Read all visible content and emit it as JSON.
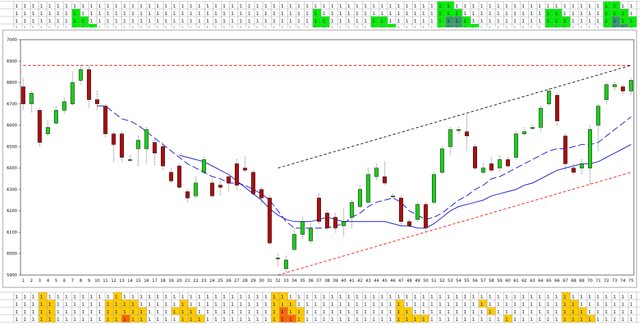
{
  "chart_data": {
    "type": "candlestick",
    "title": "",
    "xlabel": "",
    "ylabel": "",
    "x": [
      1,
      2,
      3,
      4,
      5,
      6,
      7,
      8,
      9,
      10,
      11,
      12,
      13,
      14,
      15,
      16,
      17,
      18,
      19,
      20,
      21,
      22,
      23,
      24,
      25,
      26,
      27,
      28,
      29,
      30,
      31,
      32,
      33,
      34,
      35,
      36,
      37,
      38,
      39,
      40,
      41,
      42,
      43,
      44,
      45,
      46,
      47,
      48,
      49,
      50,
      51,
      52,
      53,
      54,
      55,
      56,
      57,
      58,
      59,
      60,
      61,
      62,
      63,
      64,
      65,
      66,
      67,
      68,
      69,
      70,
      71,
      72,
      73,
      74,
      75
    ],
    "xlim": [
      1,
      75
    ],
    "ylim": [
      5900,
      7000
    ],
    "yticks": [
      5900,
      6000,
      6100,
      6200,
      6300,
      6400,
      6500,
      6600,
      6700,
      6800,
      6900,
      7000
    ],
    "grid": false,
    "candles": [
      [
        6780,
        6700,
        6820,
        6670
      ],
      [
        6700,
        6750,
        6760,
        6660
      ],
      [
        6670,
        6520,
        6680,
        6500
      ],
      [
        6560,
        6590,
        6620,
        6550
      ],
      [
        6610,
        6670,
        6690,
        6600
      ],
      [
        6670,
        6710,
        6730,
        6650
      ],
      [
        6700,
        6800,
        6850,
        6690
      ],
      [
        6810,
        6860,
        6880,
        6790
      ],
      [
        6860,
        6720,
        6880,
        6680
      ],
      [
        6720,
        6700,
        6760,
        6670
      ],
      [
        6690,
        6560,
        6700,
        6540
      ],
      [
        6560,
        6510,
        6570,
        6430
      ],
      [
        6560,
        6450,
        6570,
        6430
      ],
      [
        6440,
        6440,
        6460,
        6430
      ],
      [
        6490,
        6530,
        6550,
        6410
      ],
      [
        6490,
        6580,
        6590,
        6420
      ],
      [
        6520,
        6470,
        6530,
        6410
      ],
      [
        6500,
        6410,
        6520,
        6390
      ],
      [
        6380,
        6340,
        6400,
        6330
      ],
      [
        6410,
        6310,
        6420,
        6300
      ],
      [
        6290,
        6260,
        6300,
        6240
      ],
      [
        6270,
        6330,
        6360,
        6260
      ],
      [
        6380,
        6440,
        6450,
        6370
      ],
      [
        6330,
        6270,
        6350,
        6260
      ],
      [
        6320,
        6310,
        6340,
        6270
      ],
      [
        6360,
        6330,
        6360,
        6290
      ],
      [
        6420,
        6320,
        6440,
        6300
      ],
      [
        6400,
        6390,
        6450,
        6380
      ],
      [
        6380,
        6280,
        6390,
        6270
      ],
      [
        6300,
        6260,
        6310,
        6230
      ],
      [
        6260,
        6050,
        6270,
        6040
      ],
      [
        5980,
        5980,
        6000,
        5940
      ],
      [
        5930,
        5970,
        5990,
        5910
      ],
      [
        6020,
        6090,
        6120,
        6010
      ],
      [
        6090,
        6150,
        6170,
        6070
      ],
      [
        6060,
        6120,
        6140,
        6050
      ],
      [
        6260,
        6150,
        6280,
        6140
      ],
      [
        6190,
        6120,
        6200,
        6110
      ],
      [
        6170,
        6120,
        6190,
        6100
      ],
      [
        6130,
        6150,
        6210,
        6080
      ],
      [
        6170,
        6240,
        6250,
        6120
      ],
      [
        6220,
        6300,
        6320,
        6210
      ],
      [
        6240,
        6370,
        6400,
        6230
      ],
      [
        6360,
        6400,
        6420,
        6340
      ],
      [
        6360,
        6330,
        6430,
        6320
      ],
      [
        6270,
        6270,
        6280,
        6260
      ],
      [
        6260,
        6150,
        6270,
        6130
      ],
      [
        6150,
        6130,
        6160,
        6120
      ],
      [
        6160,
        6230,
        6240,
        6150
      ],
      [
        6230,
        6120,
        6240,
        6100
      ],
      [
        6240,
        6370,
        6380,
        6230
      ],
      [
        6380,
        6490,
        6500,
        6370
      ],
      [
        6500,
        6580,
        6590,
        6460
      ],
      [
        6580,
        6580,
        6590,
        6560
      ],
      [
        6570,
        6550,
        6650,
        6480
      ],
      [
        6500,
        6400,
        6510,
        6390
      ],
      [
        6380,
        6400,
        6420,
        6370
      ],
      [
        6420,
        6390,
        6450,
        6380
      ],
      [
        6400,
        6440,
        6460,
        6380
      ],
      [
        6440,
        6410,
        6450,
        6400
      ],
      [
        6450,
        6560,
        6570,
        6440
      ],
      [
        6560,
        6570,
        6590,
        6550
      ],
      [
        6590,
        6590,
        6600,
        6580
      ],
      [
        6590,
        6680,
        6690,
        6570
      ],
      [
        6700,
        6760,
        6770,
        6690
      ],
      [
        6740,
        6620,
        6750,
        6600
      ],
      [
        6550,
        6420,
        6560,
        6390
      ],
      [
        6400,
        6380,
        6420,
        6370
      ],
      [
        6400,
        6420,
        6440,
        6370
      ],
      [
        6400,
        6580,
        6600,
        6320
      ],
      [
        6600,
        6690,
        6700,
        6480
      ],
      [
        6720,
        6790,
        6800,
        6700
      ],
      [
        6780,
        6790,
        6800,
        6760
      ],
      [
        6780,
        6760,
        6790,
        6740
      ],
      [
        6760,
        6810,
        6820,
        6740
      ]
    ],
    "ma_short": [
      null,
      null,
      null,
      null,
      null,
      null,
      null,
      null,
      null,
      6690,
      6690,
      6660,
      6630,
      6620,
      6600,
      6570,
      6540,
      6510,
      6480,
      6450,
      6420,
      6400,
      6380,
      6360,
      6350,
      6330,
      6330,
      6320,
      6300,
      6280,
      6250,
      6200,
      6150,
      6120,
      6120,
      6120,
      6120,
      6120,
      6130,
      6140,
      6170,
      6190,
      6220,
      6240,
      6250,
      6260,
      6240,
      6200,
      6180,
      6160,
      6170,
      6190,
      6220,
      6250,
      6270,
      6300,
      6320,
      6350,
      6360,
      6380,
      6400,
      6420,
      6440,
      6460,
      6480,
      6490,
      6490,
      6500,
      6510,
      6510,
      6520,
      6550,
      6580,
      6610,
      6640
    ],
    "ma_long": [
      null,
      null,
      null,
      null,
      null,
      null,
      null,
      null,
      null,
      null,
      null,
      null,
      null,
      null,
      null,
      null,
      null,
      null,
      null,
      6460,
      6450,
      6440,
      6430,
      6410,
      6390,
      6370,
      6340,
      6310,
      6280,
      6250,
      6210,
      6180,
      6160,
      6150,
      6150,
      6150,
      6160,
      6170,
      6160,
      6150,
      6150,
      6150,
      6150,
      6150,
      6150,
      6140,
      6130,
      6130,
      6120,
      6120,
      6140,
      6170,
      6200,
      6220,
      6230,
      6240,
      6250,
      6270,
      6280,
      6290,
      6300,
      6320,
      6330,
      6350,
      6370,
      6390,
      6400,
      6410,
      6420,
      6420,
      6430,
      6450,
      6470,
      6490,
      6510
    ],
    "lines": [
      {
        "color": "#ff0000",
        "style": "dashed",
        "points": [
          [
            1,
            6880
          ],
          [
            75,
            6880
          ]
        ]
      },
      {
        "color": "#000000",
        "style": "dashed",
        "points": [
          [
            32,
            6400
          ],
          [
            75,
            6880
          ]
        ]
      },
      {
        "color": "#ff0000",
        "style": "dashed",
        "points": [
          [
            32,
            5900
          ],
          [
            75,
            6380
          ]
        ]
      }
    ],
    "colors": {
      "up": "#22cc22",
      "down": "#aa1111",
      "ma": "#0000cc"
    }
  },
  "top_grid": {
    "value": "1",
    "rows": 4,
    "cols": 75,
    "highlights": [
      {
        "col": 8,
        "rows": [
          1,
          2,
          3
        ],
        "color": "#00ee00"
      },
      {
        "col": 9,
        "rows": [
          2,
          3
        ],
        "color": "#00ee00"
      },
      {
        "col": 10,
        "rows": [
          3
        ],
        "color": "#00ee00"
      },
      {
        "col": 37,
        "rows": [
          1,
          2,
          3
        ],
        "color": "#00ee00"
      },
      {
        "col": 38,
        "rows": [
          2,
          3
        ],
        "color": "#00ee00"
      },
      {
        "col": 44,
        "rows": [
          2,
          3
        ],
        "color": "#00ee00"
      },
      {
        "col": 45,
        "rows": [
          2,
          3
        ],
        "color": "#00ee00"
      },
      {
        "col": 46,
        "rows": [
          3
        ],
        "color": "#00ee00"
      },
      {
        "col": 52,
        "rows": [
          0,
          1,
          2,
          3
        ],
        "color": "#00ee00"
      },
      {
        "col": 53,
        "rows": [
          0,
          1
        ],
        "color": "#00ee00"
      },
      {
        "col": 53,
        "rows": [
          2,
          3
        ],
        "color": "#339966"
      },
      {
        "col": 54,
        "rows": [
          1
        ],
        "color": "#00ee00"
      },
      {
        "col": 54,
        "rows": [
          2,
          3
        ],
        "color": "#339966"
      },
      {
        "col": 55,
        "rows": [
          2,
          3
        ],
        "color": "#00ee00"
      },
      {
        "col": 56,
        "rows": [
          3
        ],
        "color": "#00ee00"
      },
      {
        "col": 65,
        "rows": [
          1,
          2,
          3
        ],
        "color": "#00ee00"
      },
      {
        "col": 66,
        "rows": [
          1,
          2,
          3
        ],
        "color": "#00ee00"
      },
      {
        "col": 67,
        "rows": [
          2,
          3
        ],
        "color": "#00ee00"
      },
      {
        "col": 72,
        "rows": [
          0,
          1,
          2,
          3
        ],
        "color": "#00ee00"
      },
      {
        "col": 73,
        "rows": [
          0,
          1
        ],
        "color": "#00ee00"
      },
      {
        "col": 73,
        "rows": [
          2,
          3
        ],
        "color": "#339966"
      },
      {
        "col": 74,
        "rows": [
          1,
          2
        ],
        "color": "#00ee00"
      },
      {
        "col": 74,
        "rows": [
          3
        ],
        "color": "#339966"
      },
      {
        "col": 75,
        "rows": [
          2,
          3
        ],
        "color": "#00ee00"
      }
    ]
  },
  "bottom_grid": {
    "value": "1",
    "rows": 4,
    "cols": 75,
    "highlights": [
      {
        "col": 4,
        "rows": [
          0,
          1,
          2,
          3
        ],
        "color": "#ffcc00"
      },
      {
        "col": 5,
        "rows": [
          1,
          2,
          3
        ],
        "color": "#ffcc00"
      },
      {
        "col": 12,
        "rows": [
          1,
          2,
          3
        ],
        "color": "#ffcc00"
      },
      {
        "col": 13,
        "rows": [
          0,
          1,
          2,
          3
        ],
        "color": "#ffcc00"
      },
      {
        "col": 14,
        "rows": [
          1,
          2
        ],
        "color": "#ffcc00"
      },
      {
        "col": 14,
        "rows": [
          3
        ],
        "color": "#ff6600"
      },
      {
        "col": 15,
        "rows": [
          1,
          2,
          3
        ],
        "color": "#ffcc00"
      },
      {
        "col": 16,
        "rows": [
          2,
          3
        ],
        "color": "#ffcc00"
      },
      {
        "col": 20,
        "rows": [
          2
        ],
        "color": "#ffcc00"
      },
      {
        "col": 21,
        "rows": [
          1,
          2,
          3
        ],
        "color": "#ffcc00"
      },
      {
        "col": 22,
        "rows": [
          2,
          3
        ],
        "color": "#ffcc00"
      },
      {
        "col": 23,
        "rows": [
          3
        ],
        "color": "#ffcc00"
      },
      {
        "col": 32,
        "rows": [
          0,
          1,
          2,
          3
        ],
        "color": "#ffcc00"
      },
      {
        "col": 33,
        "rows": [
          0,
          1
        ],
        "color": "#ffcc00"
      },
      {
        "col": 33,
        "rows": [
          2,
          3
        ],
        "color": "#ff6600"
      },
      {
        "col": 34,
        "rows": [
          1,
          2
        ],
        "color": "#ffcc00"
      },
      {
        "col": 34,
        "rows": [
          3
        ],
        "color": "#ff6600"
      },
      {
        "col": 35,
        "rows": [
          2,
          3
        ],
        "color": "#ffcc00"
      },
      {
        "col": 47,
        "rows": [
          1,
          2,
          3
        ],
        "color": "#ffcc00"
      },
      {
        "col": 48,
        "rows": [
          2,
          3
        ],
        "color": "#ffcc00"
      },
      {
        "col": 49,
        "rows": [
          3
        ],
        "color": "#ffcc00"
      },
      {
        "col": 50,
        "rows": [
          3
        ],
        "color": "#ffcc00"
      },
      {
        "col": 57,
        "rows": [
          1
        ],
        "color": "#ffcc00"
      },
      {
        "col": 58,
        "rows": [
          2
        ],
        "color": "#ffcc00"
      },
      {
        "col": 60,
        "rows": [
          3
        ],
        "color": "#ffcc00"
      },
      {
        "col": 67,
        "rows": [
          0,
          1,
          2,
          3
        ],
        "color": "#ffcc00"
      },
      {
        "col": 68,
        "rows": [
          1,
          2,
          3
        ],
        "color": "#ffcc00"
      },
      {
        "col": 69,
        "rows": [
          2,
          3
        ],
        "color": "#ffcc00"
      },
      {
        "col": 70,
        "rows": [
          3
        ],
        "color": "#ffcc00"
      }
    ]
  }
}
